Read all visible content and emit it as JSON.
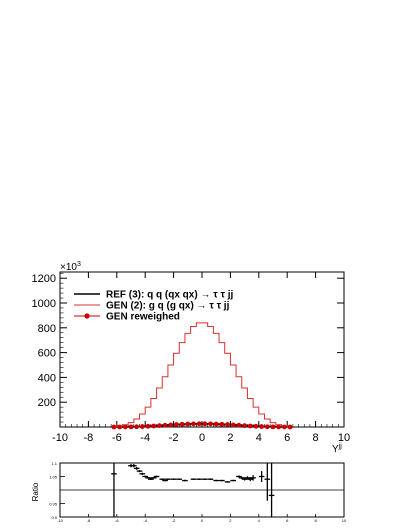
{
  "chart_data": [
    {
      "type": "line",
      "xlabel": "Y",
      "xlabel_superscript": "jj",
      "ylabel": "",
      "y_multiplier": "×10",
      "y_multiplier_exponent": "3",
      "xlim": [
        -10,
        10
      ],
      "ylim": [
        0,
        1250
      ],
      "x_ticks": [
        -10,
        -8,
        -6,
        -4,
        -2,
        0,
        2,
        4,
        6,
        8,
        10
      ],
      "x_tick_labels": [
        "-10",
        "-8",
        "-6",
        "-4",
        "-2",
        "0",
        "2",
        "4",
        "6",
        "8",
        "10"
      ],
      "y_ticks": [
        200,
        400,
        600,
        800,
        1000,
        1200
      ],
      "y_tick_labels": [
        "200",
        "400",
        "600",
        "800",
        "1000",
        "1200"
      ],
      "grid": false,
      "legend_position": "top-left",
      "bin_edges": [
        -6.4,
        -6.0,
        -5.6,
        -5.2,
        -4.8,
        -4.4,
        -4.0,
        -3.6,
        -3.2,
        -2.8,
        -2.4,
        -2.0,
        -1.6,
        -1.2,
        -0.8,
        -0.4,
        0.0,
        0.4,
        0.8,
        1.2,
        1.6,
        2.0,
        2.4,
        2.8,
        3.2,
        3.6,
        4.0,
        4.4,
        4.8,
        5.2,
        5.6,
        6.0,
        6.4
      ],
      "series": [
        {
          "name": "REF (3): q q (qx qx) → τ τ jj",
          "style": "step",
          "color": "#000000",
          "values": [
            0.05,
            0.2,
            0.5,
            1,
            2,
            3.5,
            5.5,
            8,
            11,
            14,
            17,
            20,
            22,
            24,
            25.5,
            26,
            26,
            25.5,
            24,
            22,
            20,
            17,
            14,
            11,
            8,
            5.5,
            3.5,
            2,
            1,
            0.5,
            0.2,
            0.05
          ]
        },
        {
          "name": "GEN (2): g q (g qx) → τ τ jj",
          "style": "step",
          "color": "#d9302c",
          "values": [
            2,
            8,
            18,
            35,
            65,
            105,
            160,
            230,
            315,
            405,
            500,
            595,
            680,
            755,
            810,
            840,
            840,
            810,
            755,
            680,
            595,
            500,
            405,
            315,
            230,
            160,
            105,
            65,
            35,
            18,
            8,
            2
          ]
        },
        {
          "name": "GEN reweighed",
          "style": "markers",
          "color": "#cc0000",
          "values": [
            0.05,
            0.2,
            0.5,
            1,
            2,
            3.5,
            5.5,
            8,
            11,
            14,
            17,
            20,
            22,
            24,
            25.5,
            26,
            26,
            25.5,
            24,
            22,
            20,
            17,
            14,
            11,
            8,
            5.5,
            3.5,
            2,
            1,
            0.5,
            0.2,
            0.05
          ]
        }
      ]
    },
    {
      "type": "scatter",
      "ylabel": "Ratio",
      "xlim": [
        -10,
        10
      ],
      "ylim": [
        0.9,
        1.1
      ],
      "y_ticks": [
        0.9,
        0.95,
        1.05,
        1.1
      ],
      "y_tick_labels": [
        "0.9",
        "0.95",
        "1.05",
        "1.1"
      ],
      "x_ticks": [
        -10,
        -8,
        -6,
        -4,
        -2,
        0,
        2,
        4,
        6,
        8,
        10
      ],
      "x_tick_labels": [
        "-10",
        "-8",
        "-6",
        "-4",
        "-2",
        "0",
        "2",
        "4",
        "6",
        "8",
        "10"
      ],
      "reference_line": 1.0,
      "points": [
        {
          "x": -6.2,
          "y": 1.06,
          "err": 0.2
        },
        {
          "x": -5.0,
          "y": 1.09,
          "err": 0.006
        },
        {
          "x": -4.8,
          "y": 1.09,
          "err": 0.006
        },
        {
          "x": -4.6,
          "y": 1.08,
          "err": 0.005
        },
        {
          "x": -4.4,
          "y": 1.07,
          "err": 0.004
        },
        {
          "x": -4.2,
          "y": 1.06,
          "err": 0.004
        },
        {
          "x": -4.0,
          "y": 1.05,
          "err": 0.003
        },
        {
          "x": -3.8,
          "y": 1.045,
          "err": 0.003
        },
        {
          "x": -3.6,
          "y": 1.04,
          "err": 0.003
        },
        {
          "x": -3.4,
          "y": 1.045,
          "err": 0.003
        },
        {
          "x": -3.2,
          "y": 1.05,
          "err": 0.003
        },
        {
          "x": -2.8,
          "y": 1.04,
          "err": 0.003
        },
        {
          "x": -2.6,
          "y": 1.035,
          "err": 0.003
        },
        {
          "x": -2.4,
          "y": 1.04,
          "err": 0.003
        },
        {
          "x": -2.0,
          "y": 1.04,
          "err": 0.003
        },
        {
          "x": -1.6,
          "y": 1.04,
          "err": 0.003
        },
        {
          "x": -1.2,
          "y": 1.035,
          "err": 0.003
        },
        {
          "x": -0.6,
          "y": 1.04,
          "err": 0.003
        },
        {
          "x": -0.2,
          "y": 1.04,
          "err": 0.003
        },
        {
          "x": 0.2,
          "y": 1.04,
          "err": 0.003
        },
        {
          "x": 0.6,
          "y": 1.04,
          "err": 0.003
        },
        {
          "x": 1.0,
          "y": 1.035,
          "err": 0.003
        },
        {
          "x": 1.4,
          "y": 1.035,
          "err": 0.003
        },
        {
          "x": 1.8,
          "y": 1.03,
          "err": 0.003
        },
        {
          "x": 2.2,
          "y": 1.035,
          "err": 0.003
        },
        {
          "x": 2.6,
          "y": 1.05,
          "err": 0.004
        },
        {
          "x": 2.8,
          "y": 1.045,
          "err": 0.004
        },
        {
          "x": 3.0,
          "y": 1.04,
          "err": 0.005
        },
        {
          "x": 3.2,
          "y": 1.045,
          "err": 0.006
        },
        {
          "x": 3.4,
          "y": 1.04,
          "err": 0.007
        },
        {
          "x": 3.6,
          "y": 1.045,
          "err": 0.01
        },
        {
          "x": 4.2,
          "y": 1.05,
          "err": 0.02
        },
        {
          "x": 4.6,
          "y": 1.04,
          "err": 0.08
        },
        {
          "x": 4.9,
          "y": 0.98,
          "err": 0.15
        }
      ]
    }
  ]
}
